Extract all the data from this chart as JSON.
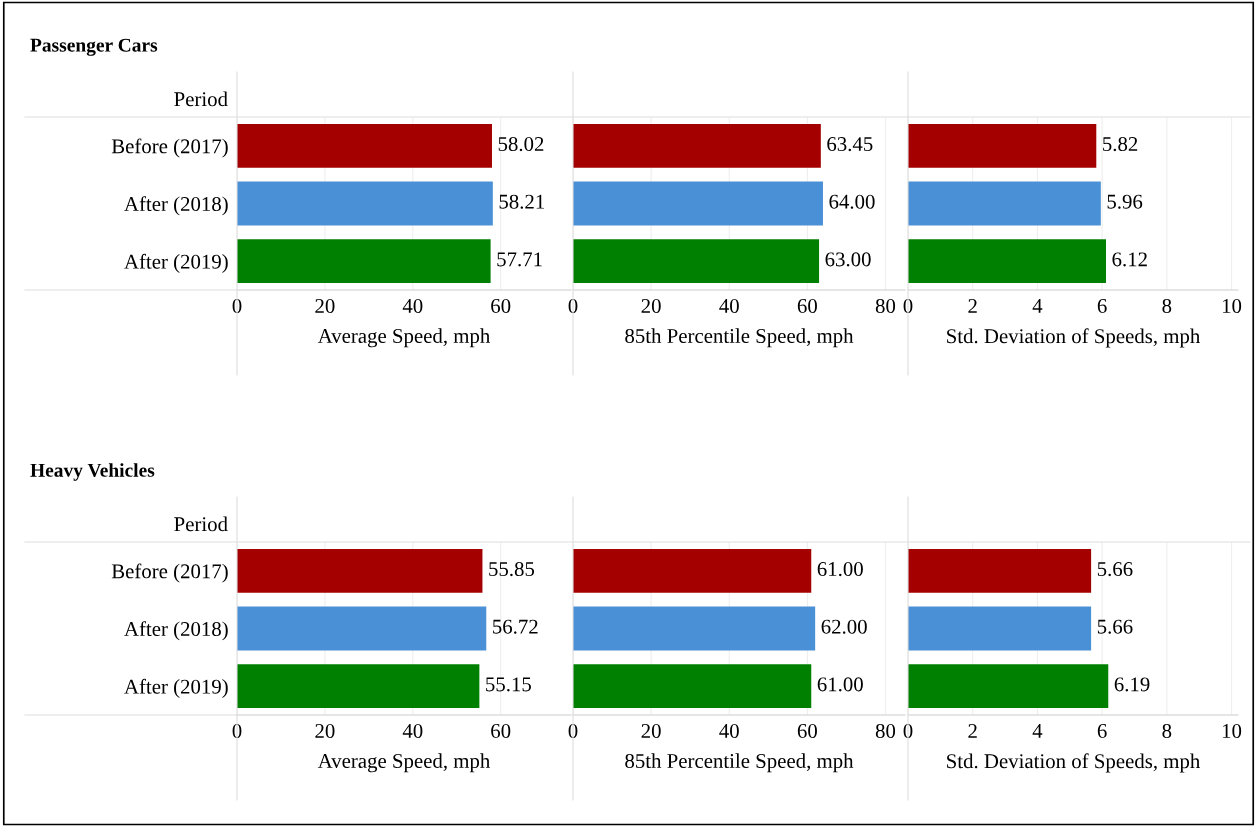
{
  "chart_data": [
    {
      "type": "bar",
      "orientation": "horizontal",
      "title": "Passenger Cars",
      "ylabel": "Period",
      "categories": [
        "Before (2017)",
        "After (2018)",
        "After (2019)"
      ],
      "colors": [
        "#a50000",
        "#4a90d6",
        "#008000"
      ],
      "values": [
        58.02,
        58.21,
        57.71
      ],
      "value_labels": [
        "58.02",
        "58.21",
        "57.71"
      ],
      "xlabel": "Average Speed, mph",
      "xlim": [
        0,
        76
      ],
      "xticks": [
        0,
        20,
        40,
        60
      ],
      "grid": "x"
    },
    {
      "type": "bar",
      "orientation": "horizontal",
      "categories": [
        null,
        null,
        null
      ],
      "colors": [
        "#a50000",
        "#4a90d6",
        "#008000"
      ],
      "values": [
        63.45,
        64.0,
        63.0
      ],
      "value_labels": [
        "63.45",
        "64.00",
        "63.00"
      ],
      "xlabel": "85th Percentile Speed, mph",
      "xlim": [
        0,
        85
      ],
      "xticks": [
        0,
        20,
        40,
        60,
        80
      ],
      "grid": "x",
      "tick_labels": "x"
    },
    {
      "type": "bar",
      "orientation": "horizontal",
      "categories": [
        null,
        null,
        null
      ],
      "colors": [
        "#a50000",
        "#4a90d6",
        "#008000"
      ],
      "values": [
        5.82,
        5.96,
        6.12
      ],
      "value_labels": [
        "5.82",
        "5.96",
        "6.12"
      ],
      "xlabel": "Std. Deviation of Speeds, mph",
      "xlim": [
        0,
        10.2
      ],
      "xticks": [
        0,
        2,
        4,
        6,
        8,
        10
      ],
      "grid": "x",
      "tick_labels": "x"
    },
    {
      "type": "bar",
      "orientation": "horizontal",
      "title": "Heavy Vehicles",
      "ylabel": "Period",
      "categories": [
        "Before (2017)",
        "After (2018)",
        "After (2019)"
      ],
      "colors": [
        "#a50000",
        "#4a90d6",
        "#008000"
      ],
      "values": [
        55.85,
        56.72,
        55.15
      ],
      "value_labels": [
        "55.85",
        "56.72",
        "55.15"
      ],
      "xlabel": "Average Speed, mph",
      "xlim": [
        0,
        76
      ],
      "xticks": [
        0,
        20,
        40,
        60
      ],
      "grid": "x"
    },
    {
      "type": "bar",
      "orientation": "horizontal",
      "categories": [
        null,
        null,
        null
      ],
      "colors": [
        "#a50000",
        "#4a90d6",
        "#008000"
      ],
      "values": [
        61.0,
        62.0,
        61.0
      ],
      "value_labels": [
        "61.00",
        "62.00",
        "61.00"
      ],
      "xlabel": "85th Percentile Speed, mph",
      "xlim": [
        0,
        85
      ],
      "xticks": [
        0,
        20,
        40,
        60,
        80
      ],
      "grid": "x",
      "tick_labels": "x"
    },
    {
      "type": "bar",
      "orientation": "horizontal",
      "categories": [
        null,
        null,
        null
      ],
      "colors": [
        "#a50000",
        "#4a90d6",
        "#008000"
      ],
      "values": [
        5.66,
        5.66,
        6.19
      ],
      "value_labels": [
        "5.66",
        "5.66",
        "6.19"
      ],
      "xlabel": "Std. Deviation of Speeds, mph",
      "xlim": [
        0,
        10.2
      ],
      "xticks": [
        0,
        2,
        4,
        6,
        8,
        10
      ],
      "grid": "x",
      "tick_labels": "x"
    }
  ]
}
